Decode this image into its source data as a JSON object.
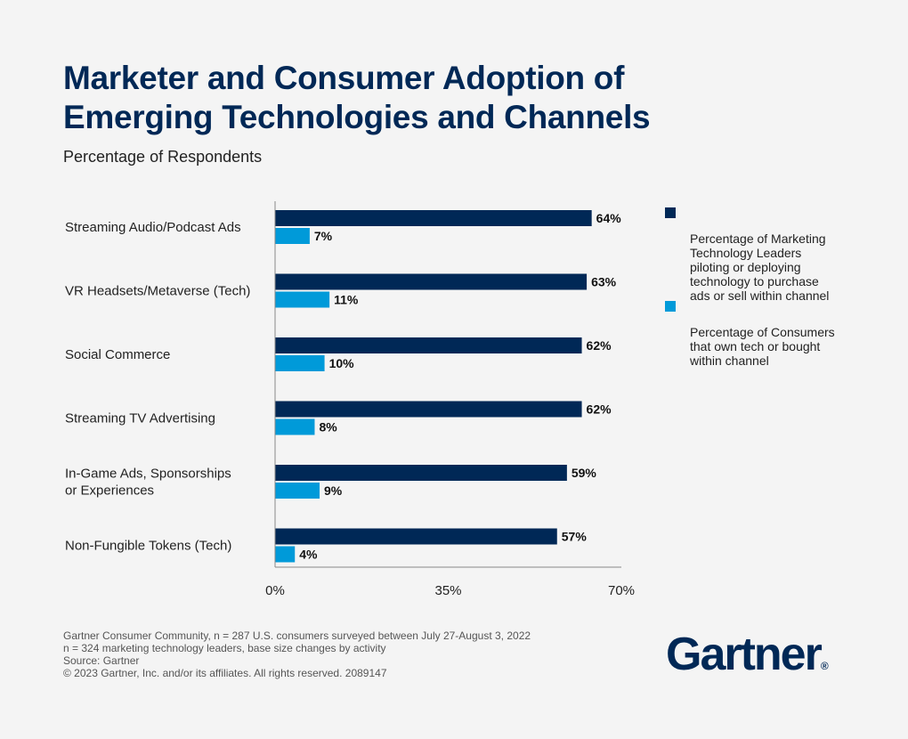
{
  "chart_data": {
    "type": "bar",
    "orientation": "horizontal",
    "title": "Marketer and Consumer Adoption of Emerging Technologies and Channels",
    "subtitle": "Percentage of Respondents",
    "categories": [
      "Streaming Audio/Podcast Ads",
      "VR Headsets/Metaverse (Tech)",
      "Social Commerce",
      "Streaming TV Advertising",
      "In-Game Ads, Sponsorships\nor Experiences",
      "Non-Fungible Tokens (Tech)"
    ],
    "series": [
      {
        "name": "Percentage of Marketing\nTechnology Leaders\npiloting or deploying\ntechnology to purchase\nads or sell within channel",
        "color": "#002856",
        "values": [
          64,
          63,
          62,
          62,
          59,
          57
        ]
      },
      {
        "name": "Percentage of Consumers\nthat own tech or bought\nwithin channel",
        "color": "#009ad9",
        "values": [
          7,
          11,
          10,
          8,
          9,
          4
        ]
      }
    ],
    "xlim": [
      0,
      70
    ],
    "xticks": [
      "0%",
      "35%",
      "70%"
    ],
    "xtick_values": [
      0,
      35,
      70
    ],
    "value_suffix": "%",
    "grid": false,
    "legend_placement": "right"
  },
  "footer": {
    "lines": [
      "Gartner Consumer Community, n = 287 U.S. consumers surveyed between July 27-August 3, 2022",
      "n = 324 marketing technology leaders, base size changes by activity",
      "Source: Gartner",
      "© 2023 Gartner, Inc. and/or its affiliates. All rights reserved. 2089147"
    ]
  },
  "logo": {
    "text": "Gartner",
    "mark": "®"
  }
}
